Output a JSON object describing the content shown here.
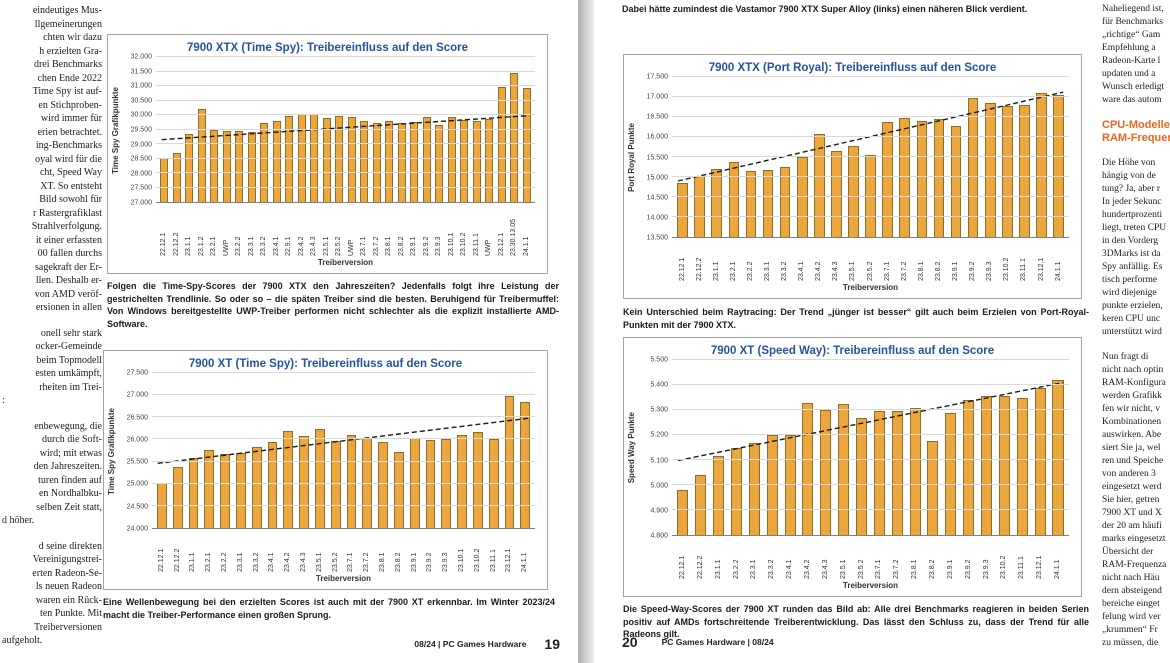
{
  "colors": {
    "bar": "#EBA63E",
    "bar_border": "#8C6D2A",
    "title_blue": "#2353A0",
    "heading_orange": "#E8641E",
    "gridline": "#D9D9D9",
    "trend": "#1A1A1A"
  },
  "page_left": {
    "text_column": {
      "blocks": [
        {
          "para_end": false,
          "lines": [
            "eindeutiges Mus-",
            "llgemeinerungen",
            "chten wir dazu",
            "h erzielten Gra-",
            "drei Benchmarks",
            "chen Ende 2022",
            "Time Spy ist auf-",
            "en Stichproben-",
            "wird immer für",
            "erien betrachtet.",
            "ing-Benchmarks",
            "oyal wird für die",
            "cht, Speed Way",
            "XT. So entsteht",
            "Bild sowohl für",
            "r Rastergrafiklast",
            "Strahlverfolgung.",
            "it einer erfassten",
            "00 fallen durchs",
            "sagekraft der Er-",
            "llen. Deshalb er-",
            "von AMD veröf-",
            "ersionen in allen"
          ]
        },
        {
          "para_end": true,
          "lines": [
            "onell sehr stark",
            "ocker-Gemeinde",
            "beim Topmodell",
            "esten umkämpft,",
            "rheiten im Trei-",
            ":"
          ]
        },
        {
          "para_end": true,
          "lines": [
            "enbewegung, die",
            "durch die Soft-",
            "wird; mit etwas",
            "den Jahreszeiten.",
            "turen finden auf",
            "en Nordhalbku-",
            "selben Zeit statt,",
            "d höher."
          ]
        },
        {
          "para_end": true,
          "lines": [
            "d seine direkten",
            "Vereinigungstrei-",
            "erten Radeon-Se-",
            "ls neuen Radeon",
            "waren ein Rück-",
            "ten Punkte. Mit",
            "Treiberversionen",
            "aufgeholt."
          ]
        }
      ]
    },
    "footer": {
      "issue": "08/24 | PC Games Hardware",
      "page_number": "19"
    }
  },
  "page_right": {
    "top_caption": "Dabei hätte zumindest die Vastamor 7900 XTX Super Alloy (links) einen näheren Blick verdient.",
    "text_column": {
      "blocks": [
        {
          "para_end": false,
          "lines": [
            "Naheliegend ist,",
            "für Benchmarks",
            "„richtige“ Gam",
            "Empfehlung a",
            "Radeon-Karte l",
            "updaten und a",
            "Wunsch erledigt",
            "ware das autom"
          ]
        },
        {
          "style": "heading",
          "para_end": false,
          "lines": [
            "CPU-Modelle",
            "RAM-Frequen"
          ]
        },
        {
          "para_end": false,
          "lines": [
            "Die Höhe von",
            "hängig von de",
            "tung? Ja, aber r",
            "In jeder Sekunc",
            "hundertprozenti",
            "liegt, treten CPU",
            "in den Vorderg",
            "3DMarks ist da",
            "Spy anfällig. Es",
            "tisch performe",
            "wird diejenige",
            "punkte erzielen,",
            "keren CPU unc",
            "unterstützt wird"
          ]
        },
        {
          "para_end": false,
          "lines": [
            "Nun fragt di",
            "nicht nach optin",
            "RAM-Konfigura",
            "werden Grafikk",
            "fen wir nicht, v",
            "Kombinationen",
            "auswirken. Abe",
            "siert Sie ja, wel",
            "ren und Speiche",
            "von anderen 3",
            "eingesetzt werd",
            "Sie hier, getren",
            "7900 XT und X",
            "der 20 am häufi",
            "marks eingesetzt",
            "Übersicht der",
            "RAM-Frequenza",
            "nicht nach Häu",
            "dern absteigend",
            "bereiche einget",
            "felung wird ver",
            "„krummen“ Fr",
            "zu müssen, die"
          ]
        }
      ]
    },
    "footer": {
      "page_number": "20",
      "issue": "PC Games Hardware | 08/24"
    }
  },
  "chart_data": [
    {
      "type": "bar",
      "title": "7900 XTX (Time Spy): Treibereinfluss auf den Score",
      "xlabel": "Treiberversion",
      "ylabel": "Time Spy Grafikpunkte",
      "ylim": [
        27000,
        32000
      ],
      "ytick_step": 500,
      "grid": true,
      "categories": [
        "22.12.1",
        "22.12.2",
        "23.1.1",
        "23.1.2",
        "23.2.1",
        "UWP",
        "23.2.2",
        "23.3.1",
        "23.3.2",
        "23.4.1",
        "22.9.1",
        "23.4.2",
        "23.4.3",
        "23.5.1",
        "23.5.2",
        "UWP",
        "23.7.1",
        "23.7.2",
        "23.8.1",
        "23.8.2",
        "23.9.1",
        "23.9.2",
        "23.9.3",
        "23.10.1",
        "23.10.2",
        "23.11.1",
        "UWP",
        "23.12.1",
        "23.30.13.05",
        "24.1.1"
      ],
      "values": [
        28520,
        28700,
        29330,
        30200,
        29500,
        29450,
        29460,
        29420,
        29740,
        29800,
        29950,
        30050,
        30050,
        29880,
        29960,
        29930,
        29800,
        29730,
        29780,
        29720,
        29750,
        29920,
        29640,
        29940,
        29820,
        29780,
        29860,
        30950,
        31450,
        30920
      ],
      "trendline": [
        29150,
        29980
      ],
      "caption": "Folgen die Time-Spy-Scores der 7900 XTX den Jahreszeiten? Jedenfalls folgt ihre Leistung der gestrichelten Trendlinie. So oder so – die späten Treiber sind die besten. Beruhigend für Treibermuffel: Von Windows bereitgestellte UWP-Treiber performen nicht schlechter als die explizit installierte AMD-Software."
    },
    {
      "type": "bar",
      "title": "7900 XT (Time Spy): Treibereinfluss auf den Score",
      "xlabel": "Treiberversion",
      "ylabel": "Time Spy Grafikpunkte",
      "ylim": [
        24000,
        27500
      ],
      "ytick_step": 500,
      "grid": true,
      "categories": [
        "22.12.1",
        "22.12.2",
        "23.1.1",
        "23.2.1",
        "23.2.2",
        "23.3.1",
        "23.3.2",
        "23.4.1",
        "23.4.2",
        "23.4.3",
        "23.5.1",
        "23.5.2",
        "23.7.1",
        "23.7.2",
        "23.8.1",
        "23.8.2",
        "23.9.1",
        "23.9.2",
        "23.9.3",
        "23.10.1",
        "23.10.2",
        "23.11.1",
        "23.12.1",
        "24.1.1"
      ],
      "values": [
        25010,
        25380,
        25570,
        25760,
        25680,
        25690,
        25820,
        25940,
        26190,
        26070,
        26240,
        25960,
        26100,
        26040,
        25940,
        25710,
        26040,
        25990,
        26000,
        26110,
        26170,
        26000,
        26970,
        26850
      ],
      "trendline": [
        25460,
        26480
      ],
      "caption": "Eine Wellenbewegung bei den erzielten Scores ist auch mit der 7900 XT erkennbar. Im Winter 2023/24 macht die Treiber-Performance einen großen Sprung."
    },
    {
      "type": "bar",
      "title": "7900 XTX (Port Royal): Treibereinfluss auf den Score",
      "xlabel": "Treiberversion",
      "ylabel": "Port Royal Punkte",
      "ylim": [
        13500,
        17500
      ],
      "ytick_step": 500,
      "grid": true,
      "categories": [
        "22.12.1",
        "22.12.2",
        "23.1.1",
        "23.2.1",
        "23.2.2",
        "23.3.1",
        "23.3.2",
        "23.4.1",
        "23.4.2",
        "23.4.3",
        "23.5.1",
        "23.5.2",
        "23.7.1",
        "23.7.2",
        "23.8.1",
        "23.8.2",
        "23.9.1",
        "23.9.2",
        "23.9.3",
        "23.10.2",
        "23.11.1",
        "23.12.1",
        "24.1.1"
      ],
      "values": [
        14850,
        15030,
        15210,
        15370,
        15150,
        15170,
        15250,
        15490,
        16070,
        15650,
        15770,
        15560,
        16380,
        16470,
        16400,
        16440,
        16280,
        16980,
        16840,
        16770,
        16810,
        17090,
        17050
      ],
      "trendline": [
        14900,
        17120
      ],
      "caption": "Kein Unterschied beim Raytracing: Der Trend „jünger ist besser“ gilt auch beim Erzielen von Port-Royal-Punkten mit der 7900 XTX."
    },
    {
      "type": "bar",
      "title": "7900 XT (Speed Way): Treibereinfluss auf den Score",
      "xlabel": "Treiberversion",
      "ylabel": "Speed Way Punkte",
      "ylim": [
        4800,
        5500
      ],
      "ytick_step": 100,
      "grid": true,
      "categories": [
        "22.12.1",
        "22.12.2",
        "23.1.1",
        "23.2.2",
        "23.3.1",
        "23.3.2",
        "23.4.1",
        "23.4.2",
        "23.4.3",
        "23.5.1",
        "23.5.2",
        "23.7.1",
        "23.7.2",
        "23.8.1",
        "23.8.2",
        "23.9.1",
        "23.9.2",
        "23.9.3",
        "23.10.2",
        "23.11.1",
        "23.12.1",
        "24.1.1"
      ],
      "values": [
        4980,
        5040,
        5115,
        5150,
        5170,
        5200,
        5200,
        5328,
        5302,
        5325,
        5268,
        5295,
        5298,
        5307,
        5175,
        5288,
        5340,
        5357,
        5357,
        5350,
        5388,
        5422
      ],
      "trendline": [
        5098,
        5410
      ],
      "caption": "Die Speed-Way-Scores der 7900 XT runden das Bild ab: Alle drei Benchmarks reagieren in beiden Serien positiv auf AMDs fortschreitende Treiberentwicklung. Das lässt den Schluss zu, dass der Trend für alle Radeons gilt."
    }
  ]
}
